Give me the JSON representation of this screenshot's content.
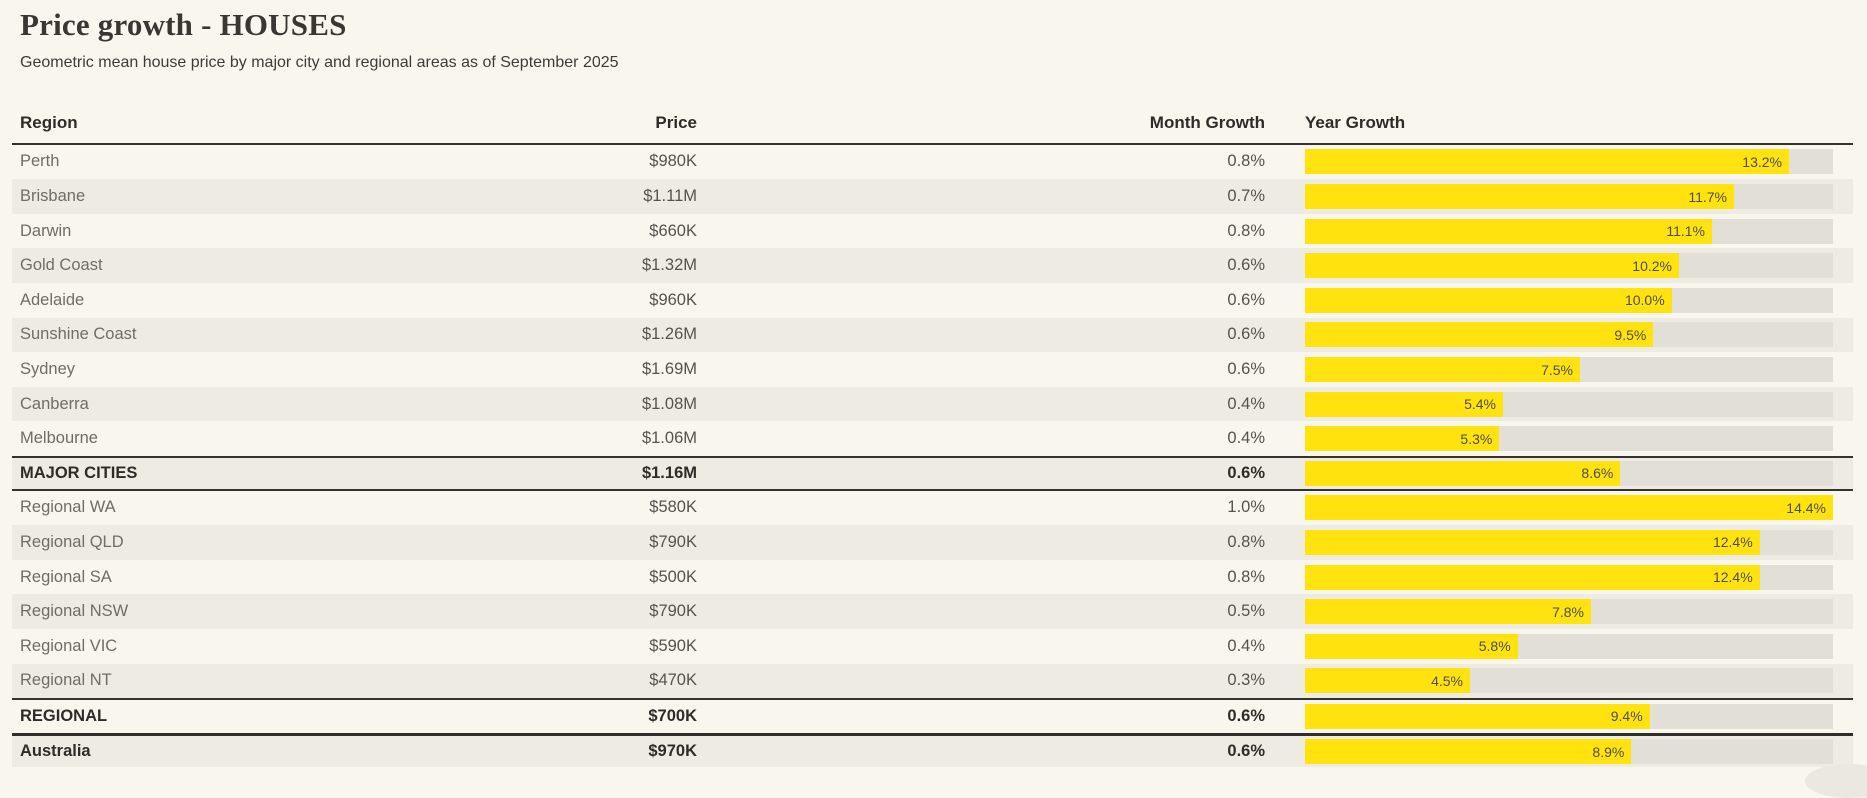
{
  "page": {
    "title": "Price growth - HOUSES",
    "subtitle": "Geometric mean house price by major city and regional areas as of September 2025"
  },
  "colors": {
    "background": "#f8f6ed",
    "row_stripe": "#eeece2",
    "bar_fill_yellow": "#ffe20e",
    "bar_track_gray": "#e2e0d6",
    "dark_rule": "#343330"
  },
  "chart_data": {
    "type": "table",
    "title": "Price growth - HOUSES",
    "subtitle": "Geometric mean house price by major city and regional areas as of September 2025",
    "columns": [
      "Region",
      "Price",
      "Month Growth",
      "Year Growth"
    ],
    "bar_column": "Year Growth",
    "bar_axis_max": 14.4,
    "legend_position": "none",
    "rows": [
      {
        "region": "Perth",
        "price": "$980K",
        "month_growth": "0.8%",
        "year_growth": "13.2%",
        "year_growth_value": 13.2,
        "emphasis": false
      },
      {
        "region": "Brisbane",
        "price": "$1.11M",
        "month_growth": "0.7%",
        "year_growth": "11.7%",
        "year_growth_value": 11.7,
        "emphasis": false
      },
      {
        "region": "Darwin",
        "price": "$660K",
        "month_growth": "0.8%",
        "year_growth": "11.1%",
        "year_growth_value": 11.1,
        "emphasis": false
      },
      {
        "region": "Gold Coast",
        "price": "$1.32M",
        "month_growth": "0.6%",
        "year_growth": "10.2%",
        "year_growth_value": 10.2,
        "emphasis": false
      },
      {
        "region": "Adelaide",
        "price": "$960K",
        "month_growth": "0.6%",
        "year_growth": "10.0%",
        "year_growth_value": 10.0,
        "emphasis": false
      },
      {
        "region": "Sunshine Coast",
        "price": "$1.26M",
        "month_growth": "0.6%",
        "year_growth": "9.5%",
        "year_growth_value": 9.5,
        "emphasis": false
      },
      {
        "region": "Sydney",
        "price": "$1.69M",
        "month_growth": "0.6%",
        "year_growth": "7.5%",
        "year_growth_value": 7.5,
        "emphasis": false
      },
      {
        "region": "Canberra",
        "price": "$1.08M",
        "month_growth": "0.4%",
        "year_growth": "5.4%",
        "year_growth_value": 5.4,
        "emphasis": false
      },
      {
        "region": "Melbourne",
        "price": "$1.06M",
        "month_growth": "0.4%",
        "year_growth": "5.3%",
        "year_growth_value": 5.3,
        "emphasis": false
      },
      {
        "region": "MAJOR CITIES",
        "price": "$1.16M",
        "month_growth": "0.6%",
        "year_growth": "8.6%",
        "year_growth_value": 8.6,
        "emphasis": true,
        "border_top": "thin",
        "border_bottom": "thin"
      },
      {
        "region": "Regional WA",
        "price": "$580K",
        "month_growth": "1.0%",
        "year_growth": "14.4%",
        "year_growth_value": 14.4,
        "emphasis": false
      },
      {
        "region": "Regional QLD",
        "price": "$790K",
        "month_growth": "0.8%",
        "year_growth": "12.4%",
        "year_growth_value": 12.4,
        "emphasis": false
      },
      {
        "region": "Regional SA",
        "price": "$500K",
        "month_growth": "0.8%",
        "year_growth": "12.4%",
        "year_growth_value": 12.4,
        "emphasis": false
      },
      {
        "region": "Regional NSW",
        "price": "$790K",
        "month_growth": "0.5%",
        "year_growth": "7.8%",
        "year_growth_value": 7.8,
        "emphasis": false
      },
      {
        "region": "Regional VIC",
        "price": "$590K",
        "month_growth": "0.4%",
        "year_growth": "5.8%",
        "year_growth_value": 5.8,
        "emphasis": false
      },
      {
        "region": "Regional NT",
        "price": "$470K",
        "month_growth": "0.3%",
        "year_growth": "4.5%",
        "year_growth_value": 4.5,
        "emphasis": false
      },
      {
        "region": "REGIONAL",
        "price": "$700K",
        "month_growth": "0.6%",
        "year_growth": "9.4%",
        "year_growth_value": 9.4,
        "emphasis": true,
        "border_top": "thin"
      },
      {
        "region": "Australia",
        "price": "$970K",
        "month_growth": "0.6%",
        "year_growth": "8.9%",
        "year_growth_value": 8.9,
        "emphasis": true,
        "border_top": "thick"
      }
    ]
  },
  "header": {
    "col_region": "Region",
    "col_price": "Price",
    "col_month_growth": "Month Growth",
    "col_year_growth": "Year Growth"
  }
}
